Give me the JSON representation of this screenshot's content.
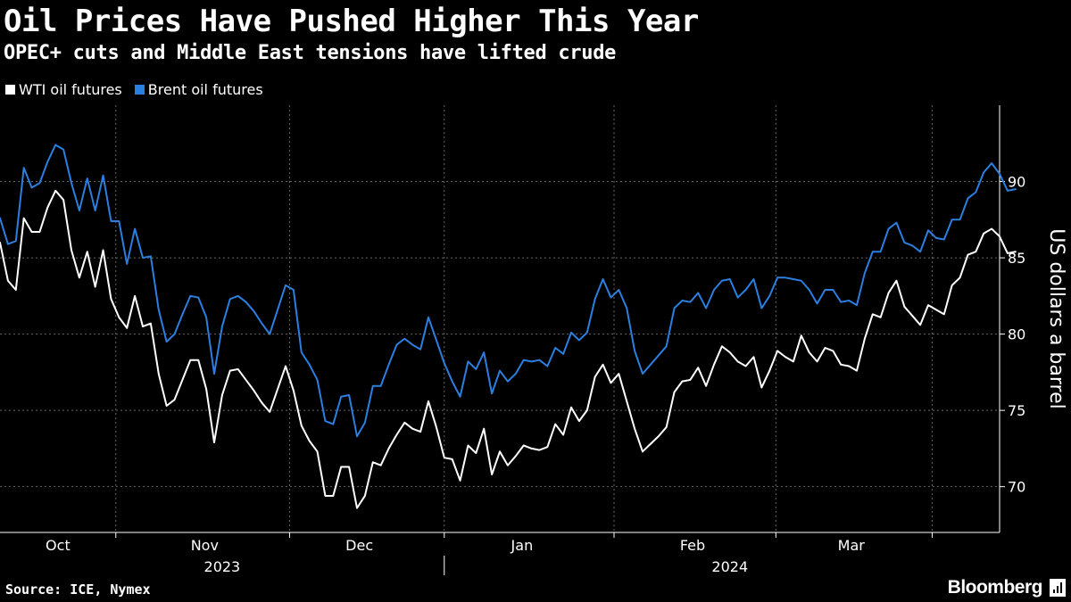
{
  "header": {
    "title": "Oil Prices Have Pushed Higher This Year",
    "subtitle": "OPEC+ cuts and Middle East tensions have lifted crude"
  },
  "footer": {
    "source": "Source: ICE, Nymex",
    "brand": "Bloomberg"
  },
  "colors": {
    "background": "#000000",
    "wti": "#ffffff",
    "brent": "#2b7fe0",
    "grid": "#666666",
    "text": "#ffffff"
  },
  "chart_data": {
    "type": "line",
    "title": "Oil Prices Have Pushed Higher This Year",
    "ylabel": "US dollars a barrel",
    "xlabel": "",
    "ylim": [
      67,
      95
    ],
    "yticks": [
      70,
      75,
      80,
      85,
      90
    ],
    "x_range": [
      0,
      126
    ],
    "month_ticks": [
      {
        "label": "Oct",
        "pos": 7.3
      },
      {
        "label": "Nov",
        "pos": 25.8
      },
      {
        "label": "Dec",
        "pos": 45.3
      },
      {
        "label": "Jan",
        "pos": 65.8
      },
      {
        "label": "Feb",
        "pos": 87.3
      },
      {
        "label": "Mar",
        "pos": 107.3
      }
    ],
    "month_gridlines": [
      14.6,
      36.5,
      56,
      77.4,
      97.8,
      117.5
    ],
    "year_labels": [
      {
        "label": "2023",
        "pos": 28
      },
      {
        "label": "2024",
        "pos": 92
      }
    ],
    "year_divider": 56,
    "grid": true,
    "legend": "top-left",
    "series": [
      {
        "name": "WTI oil futures",
        "color": "#ffffff",
        "values": [
          86,
          83.5,
          82.9,
          87.6,
          86.7,
          86.7,
          88.3,
          89.4,
          88.8,
          85.5,
          83.7,
          85.4,
          83.1,
          85.5,
          82.3,
          81.1,
          80.4,
          82.5,
          80.5,
          80.7,
          77.4,
          75.3,
          75.7,
          77,
          78.3,
          78.3,
          76.4,
          72.9,
          76,
          77.6,
          77.7,
          77,
          76.3,
          75.5,
          74.9,
          76.4,
          77.9,
          76.3,
          74,
          73,
          72.3,
          69.4,
          69.4,
          71.3,
          71.3,
          68.6,
          69.4,
          71.6,
          71.4,
          72.5,
          73.4,
          74.2,
          73.8,
          73.6,
          75.6,
          73.9,
          71.9,
          71.8,
          70.4,
          72.7,
          72.2,
          73.8,
          70.8,
          72.3,
          71.4,
          72,
          72.7,
          72.5,
          72.4,
          72.6,
          74.1,
          73.4,
          75.2,
          74.3,
          75,
          77.2,
          78.0,
          76.8,
          77.4,
          75.6,
          73.8,
          72.3,
          72.8,
          73.3,
          73.9,
          76.2,
          76.9,
          77,
          77.8,
          76.6,
          78,
          79.2,
          78.8,
          78.2,
          77.9,
          78.5,
          76.5,
          77.6,
          78.9,
          78.5,
          78.2,
          79.9,
          78.8,
          78.2,
          79.1,
          78.9,
          78,
          77.9,
          77.6,
          79.7,
          81.3,
          81.1,
          82.7,
          83.5,
          81.8,
          81.2,
          80.6,
          81.9,
          81.6,
          81.3,
          83.2,
          83.7,
          85.2,
          85.4,
          86.6,
          86.9,
          86.4,
          85.3,
          85.4
        ]
      },
      {
        "name": "Brent oil futures",
        "color": "#2b7fe0",
        "values": [
          87.6,
          85.9,
          86.1,
          90.9,
          89.6,
          89.9,
          91.3,
          92.4,
          92.1,
          89.9,
          88.1,
          90.2,
          88.1,
          90.4,
          87.4,
          87.4,
          84.6,
          86.9,
          85,
          85.1,
          81.6,
          79.5,
          80,
          81.3,
          82.5,
          82.4,
          81.1,
          77.4,
          80.5,
          82.3,
          82.5,
          82.1,
          81.5,
          80.7,
          80,
          81.6,
          83.2,
          82.9,
          78.8,
          78,
          77,
          74.3,
          74.1,
          75.9,
          76,
          73.3,
          74.2,
          76.6,
          76.6,
          78,
          79.3,
          79.7,
          79.3,
          79.0,
          81.1,
          79.6,
          78.1,
          76.9,
          75.9,
          78.2,
          77.7,
          78.8,
          76.1,
          77.6,
          76.9,
          77.4,
          78.3,
          78.2,
          78.3,
          77.9,
          79.1,
          78.7,
          80.1,
          79.6,
          80.1,
          82.3,
          83.6,
          82.4,
          82.9,
          81.7,
          78.9,
          77.4,
          78,
          78.6,
          79.2,
          81.7,
          82.2,
          82.1,
          82.7,
          81.7,
          82.9,
          83.5,
          83.6,
          82.4,
          82.9,
          83.6,
          81.7,
          82.5,
          83.7,
          83.7,
          83.6,
          83.5,
          82.9,
          82,
          82.9,
          82.9,
          82.1,
          82.2,
          81.9,
          84,
          85.4,
          85.4,
          86.9,
          87.3,
          86,
          85.8,
          85.4,
          86.8,
          86.3,
          86.2,
          87.5,
          87.5,
          88.9,
          89.3,
          90.6,
          91.2,
          90.5,
          89.4,
          89.5
        ]
      }
    ]
  }
}
